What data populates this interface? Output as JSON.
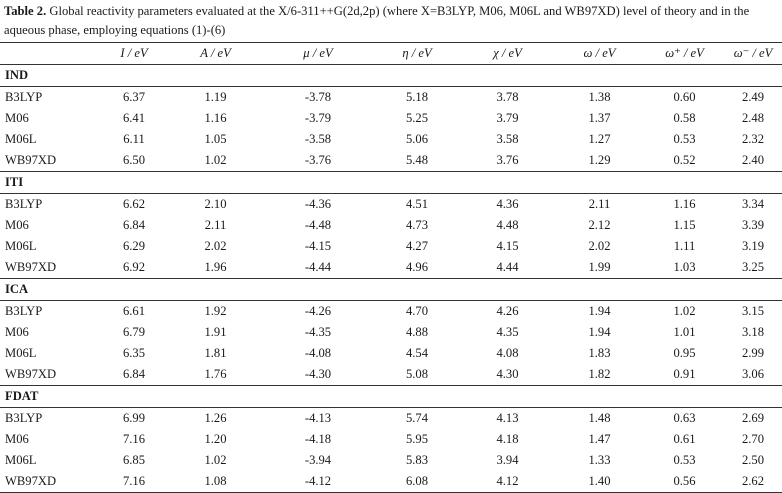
{
  "caption": {
    "label": "Table 2.",
    "text": " Global reactivity parameters evaluated at the X/6-311++G(2d,2p) (where X=B3LYP, M06, M06L and WB97XD) level of theory and in the aqueous phase, employing equations (1)-(6)"
  },
  "columns": [
    "",
    "I / eV",
    "A / eV",
    "μ / eV",
    "η / eV",
    "χ / eV",
    "ω / eV",
    "ω⁺ / eV",
    "ω⁻ / eV"
  ],
  "groups": [
    {
      "name": "IND",
      "rows": [
        [
          "B3LYP",
          "6.37",
          "1.19",
          "-3.78",
          "5.18",
          "3.78",
          "1.38",
          "0.60",
          "2.49"
        ],
        [
          "M06",
          "6.41",
          "1.16",
          "-3.79",
          "5.25",
          "3.79",
          "1.37",
          "0.58",
          "2.48"
        ],
        [
          "M06L",
          "6.11",
          "1.05",
          "-3.58",
          "5.06",
          "3.58",
          "1.27",
          "0.53",
          "2.32"
        ],
        [
          "WB97XD",
          "6.50",
          "1.02",
          "-3.76",
          "5.48",
          "3.76",
          "1.29",
          "0.52",
          "2.40"
        ]
      ]
    },
    {
      "name": "ITI",
      "rows": [
        [
          "B3LYP",
          "6.62",
          "2.10",
          "-4.36",
          "4.51",
          "4.36",
          "2.11",
          "1.16",
          "3.34"
        ],
        [
          "M06",
          "6.84",
          "2.11",
          "-4.48",
          "4.73",
          "4.48",
          "2.12",
          "1.15",
          "3.39"
        ],
        [
          "M06L",
          "6.29",
          "2.02",
          "-4.15",
          "4.27",
          "4.15",
          "2.02",
          "1.11",
          "3.19"
        ],
        [
          "WB97XD",
          "6.92",
          "1.96",
          "-4.44",
          "4.96",
          "4.44",
          "1.99",
          "1.03",
          "3.25"
        ]
      ]
    },
    {
      "name": "ICA",
      "rows": [
        [
          "B3LYP",
          "6.61",
          "1.92",
          "-4.26",
          "4.70",
          "4.26",
          "1.94",
          "1.02",
          "3.15"
        ],
        [
          "M06",
          "6.79",
          "1.91",
          "-4.35",
          "4.88",
          "4.35",
          "1.94",
          "1.01",
          "3.18"
        ],
        [
          "M06L",
          "6.35",
          "1.81",
          "-4.08",
          "4.54",
          "4.08",
          "1.83",
          "0.95",
          "2.99"
        ],
        [
          "WB97XD",
          "6.84",
          "1.76",
          "-4.30",
          "5.08",
          "4.30",
          "1.82",
          "0.91",
          "3.06"
        ]
      ]
    },
    {
      "name": "FDAT",
      "rows": [
        [
          "B3LYP",
          "6.99",
          "1.26",
          "-4.13",
          "5.74",
          "4.13",
          "1.48",
          "0.63",
          "2.69"
        ],
        [
          "M06",
          "7.16",
          "1.20",
          "-4.18",
          "5.95",
          "4.18",
          "1.47",
          "0.61",
          "2.70"
        ],
        [
          "M06L",
          "6.85",
          "1.02",
          "-3.94",
          "5.83",
          "3.94",
          "1.33",
          "0.53",
          "2.50"
        ],
        [
          "WB97XD",
          "7.16",
          "1.08",
          "-4.12",
          "6.08",
          "4.12",
          "1.40",
          "0.56",
          "2.62"
        ]
      ]
    }
  ]
}
